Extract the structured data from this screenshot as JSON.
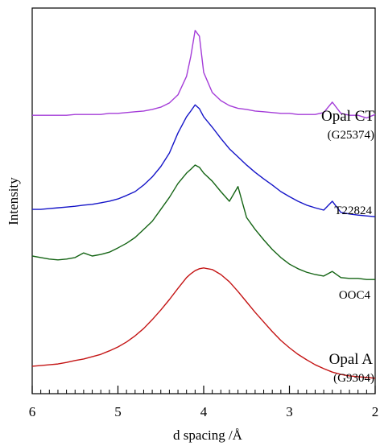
{
  "chart_data": {
    "type": "line",
    "xlabel": "d spacing /Å",
    "ylabel": "Intensity",
    "xlim": [
      6,
      2
    ],
    "ylim": [
      0,
      100
    ],
    "xticks": [
      6,
      5,
      4,
      3,
      2
    ],
    "xminorticks": [
      5.9,
      5.8,
      5.7,
      5.6,
      5.5,
      5.4,
      5.3,
      5.2,
      5.1,
      4.9,
      4.8,
      4.7,
      4.6,
      4.5,
      4.4,
      4.3,
      4.2,
      4.1,
      3.9,
      3.8,
      3.7,
      3.6,
      3.5,
      3.4,
      3.3,
      3.2,
      3.1,
      2.9,
      2.8,
      2.7,
      2.6,
      2.5,
      2.4,
      2.3,
      2.2,
      2.1
    ],
    "x": [
      6.0,
      5.9,
      5.8,
      5.7,
      5.6,
      5.5,
      5.4,
      5.3,
      5.2,
      5.1,
      5.0,
      4.9,
      4.8,
      4.7,
      4.6,
      4.5,
      4.4,
      4.3,
      4.2,
      4.15,
      4.1,
      4.05,
      4.0,
      3.9,
      3.8,
      3.7,
      3.6,
      3.5,
      3.4,
      3.3,
      3.2,
      3.1,
      3.0,
      2.9,
      2.8,
      2.7,
      2.6,
      2.5,
      2.4,
      2.3,
      2.2,
      2.1,
      2.0
    ],
    "series": [
      {
        "color": "#a43cd8",
        "values": [
          72.2,
          72.2,
          72.2,
          72.2,
          72.2,
          72.4,
          72.4,
          72.4,
          72.4,
          72.7,
          72.7,
          72.9,
          73.1,
          73.3,
          73.7,
          74.3,
          75.4,
          77.5,
          82.3,
          87.5,
          94.2,
          92.7,
          83.3,
          78.1,
          76.0,
          74.7,
          74.0,
          73.7,
          73.3,
          73.1,
          72.9,
          72.7,
          72.7,
          72.4,
          72.4,
          72.4,
          72.9,
          75.6,
          72.7,
          72.2,
          72.2,
          71.5,
          72.4
        ]
      },
      {
        "color": "#1414c8",
        "values": [
          47.8,
          47.8,
          48.0,
          48.2,
          48.4,
          48.6,
          48.9,
          49.1,
          49.5,
          49.9,
          50.5,
          51.4,
          52.4,
          54.1,
          56.2,
          58.9,
          62.4,
          67.6,
          71.8,
          73.3,
          74.9,
          73.9,
          71.8,
          69.1,
          66.2,
          63.5,
          61.4,
          59.3,
          57.4,
          55.7,
          54.1,
          52.4,
          51.1,
          49.9,
          48.9,
          48.2,
          47.6,
          49.9,
          47.0,
          46.6,
          46.3,
          46.1,
          45.9
        ]
      },
      {
        "color": "#146414",
        "values": [
          35.7,
          35.3,
          34.9,
          34.7,
          34.9,
          35.3,
          36.5,
          35.7,
          36.1,
          36.7,
          37.8,
          39.0,
          40.5,
          42.6,
          44.7,
          47.8,
          50.9,
          54.5,
          57.2,
          58.2,
          59.3,
          58.7,
          57.2,
          55.1,
          52.4,
          49.9,
          53.7,
          45.7,
          42.6,
          39.9,
          37.4,
          35.3,
          33.6,
          32.4,
          31.5,
          30.9,
          30.5,
          31.7,
          30.1,
          29.9,
          29.9,
          29.6,
          29.6
        ]
      },
      {
        "color": "#c41414",
        "values": [
          7.1,
          7.3,
          7.5,
          7.7,
          8.1,
          8.6,
          9.0,
          9.6,
          10.2,
          11.1,
          12.1,
          13.4,
          15.0,
          16.9,
          19.2,
          21.7,
          24.4,
          27.3,
          30.1,
          31.1,
          31.9,
          32.4,
          32.6,
          32.2,
          30.9,
          29.0,
          26.5,
          23.8,
          21.1,
          18.6,
          16.1,
          13.8,
          11.9,
          10.2,
          8.8,
          7.5,
          6.5,
          5.6,
          5.0,
          4.6,
          4.4,
          4.2,
          4.0
        ]
      }
    ],
    "annotations": [
      "Opal CT",
      "(G25374)",
      "T22824",
      "OOC4",
      "Opal A",
      "(G9304)"
    ]
  }
}
